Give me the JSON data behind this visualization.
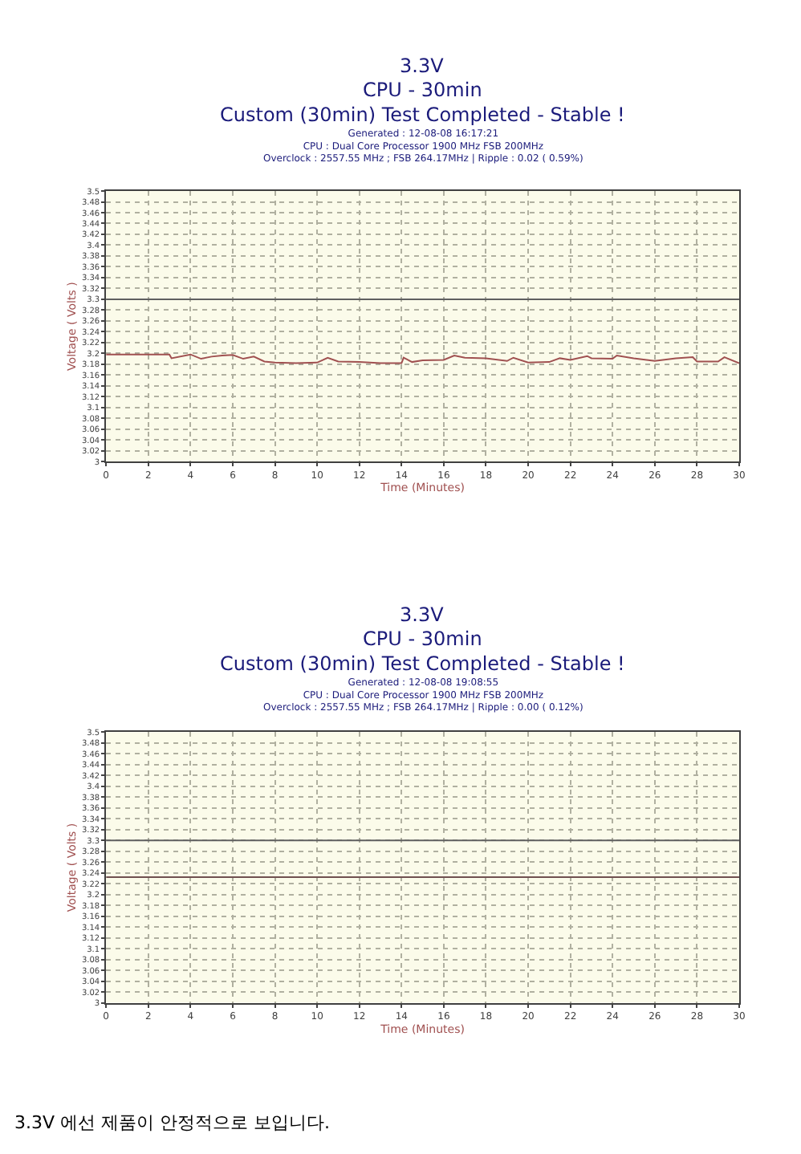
{
  "chart_data": [
    {
      "type": "line",
      "title": "3.3V",
      "subtitle": "CPU - 30min\nCustom (30min) Test Completed - Stable !",
      "annotations": [
        "Generated : 12-08-08 16:17:21\nCPU : Dual Core Processor 1900 MHz FSB 200MHz\nOverclock : 2557.55 MHz ; FSB 264.17MHz | Ripple : 0.02 ( 0.59%)"
      ],
      "xlabel": "Time (Minutes)",
      "ylabel": "Voltage ( Volts )",
      "xlim": [
        0,
        30
      ],
      "xticks": [
        0,
        2,
        4,
        6,
        8,
        10,
        12,
        14,
        16,
        18,
        20,
        22,
        24,
        26,
        28,
        30
      ],
      "ylim": [
        3,
        3.5
      ],
      "yticks": [
        3,
        3.02,
        3.04,
        3.06,
        3.08,
        3.1,
        3.12,
        3.14,
        3.16,
        3.18,
        3.2,
        3.22,
        3.24,
        3.26,
        3.28,
        3.3,
        3.32,
        3.34,
        3.36,
        3.38,
        3.4,
        3.42,
        3.44,
        3.46,
        3.48,
        3.5
      ],
      "grid": true,
      "line_style": "solid",
      "ref_lines": [
        {
          "axis": "y",
          "value": 3.3,
          "color": "#606060"
        }
      ],
      "series": [
        {
          "color": "#a05050",
          "x": [
            0,
            1,
            2,
            3,
            3.1,
            4,
            4.5,
            5,
            5.5,
            6,
            6.5,
            7,
            7.5,
            8,
            9,
            10,
            10.5,
            11,
            12,
            13,
            14,
            14.1,
            14.5,
            15,
            16,
            16.5,
            17,
            18,
            19,
            19.3,
            20,
            21,
            21.5,
            22,
            22.8,
            23,
            24,
            24.2,
            25,
            26,
            27,
            27.8,
            28,
            29,
            29.3,
            30
          ],
          "values": [
            3.198,
            3.198,
            3.198,
            3.198,
            3.191,
            3.198,
            3.19,
            3.194,
            3.196,
            3.197,
            3.19,
            3.194,
            3.185,
            3.183,
            3.182,
            3.183,
            3.192,
            3.185,
            3.184,
            3.182,
            3.182,
            3.192,
            3.184,
            3.187,
            3.188,
            3.196,
            3.192,
            3.191,
            3.186,
            3.192,
            3.183,
            3.184,
            3.191,
            3.188,
            3.195,
            3.191,
            3.19,
            3.196,
            3.191,
            3.186,
            3.191,
            3.193,
            3.185,
            3.185,
            3.193,
            3.182
          ]
        }
      ]
    },
    {
      "type": "line",
      "title": "3.3V",
      "subtitle": "CPU - 30min\nCustom (30min) Test Completed - Stable !",
      "annotations": [
        "Generated : 12-08-08 19:08:55\nCPU : Dual Core Processor 1900 MHz FSB 200MHz\nOverclock : 2557.55 MHz ; FSB 264.17MHz | Ripple : 0.00 ( 0.12%)",
        "3.3V 에선 제품이 안정적으로 보입니다."
      ],
      "xlabel": "Time (Minutes)",
      "ylabel": "Voltage ( Volts )",
      "xlim": [
        0,
        30
      ],
      "xticks": [
        0,
        2,
        4,
        6,
        8,
        10,
        12,
        14,
        16,
        18,
        20,
        22,
        24,
        26,
        28,
        30
      ],
      "ylim": [
        3,
        3.5
      ],
      "yticks": [
        3,
        3.02,
        3.04,
        3.06,
        3.08,
        3.1,
        3.12,
        3.14,
        3.16,
        3.18,
        3.2,
        3.22,
        3.24,
        3.26,
        3.28,
        3.3,
        3.32,
        3.34,
        3.36,
        3.38,
        3.4,
        3.42,
        3.44,
        3.46,
        3.48,
        3.5
      ],
      "grid": true,
      "line_style": "solid",
      "ref_lines": [
        {
          "axis": "y",
          "value": 3.3,
          "color": "#606060"
        }
      ],
      "series": [
        {
          "color": "#705050",
          "x": [
            0,
            30
          ],
          "values": [
            3.232,
            3.232
          ]
        }
      ]
    }
  ]
}
